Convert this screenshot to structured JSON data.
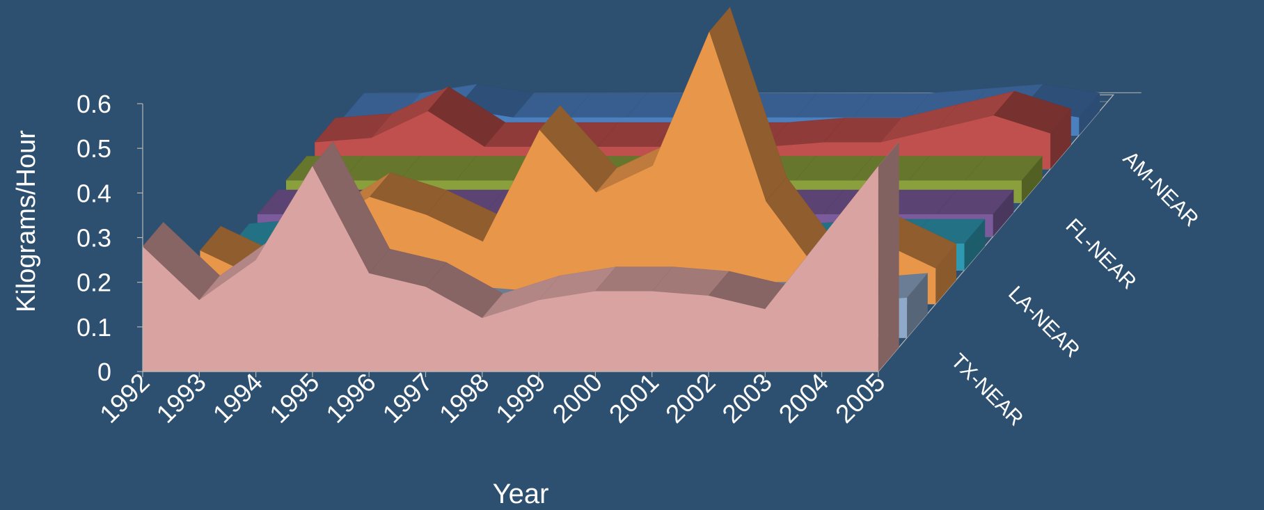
{
  "colors": {
    "background": "#2e5070",
    "axis": "#b8b8b8",
    "text": "#ffffff"
  },
  "chart_data": {
    "type": "area",
    "style": "3d-stacked-depth",
    "xlabel": "Year",
    "ylabel": "Kilograms/Hour",
    "ylim": [
      0,
      0.6
    ],
    "yticks": [
      "0",
      "0.1",
      "0.2",
      "0.3",
      "0.4",
      "0.5",
      "0.6"
    ],
    "categories": [
      "1992",
      "1993",
      "1994",
      "1995",
      "1996",
      "1997",
      "1998",
      "1999",
      "2000",
      "2001",
      "2002",
      "2003",
      "2004",
      "2005"
    ],
    "depth_labels": [
      "TX-NEAR",
      "LA-NEAR",
      "FL-NEAR",
      "AM-NEAR"
    ],
    "series": [
      {
        "name": "TX-NEAR",
        "color": "#d9a3a1",
        "values": [
          0.28,
          0.16,
          0.25,
          0.46,
          0.22,
          0.19,
          0.12,
          0.16,
          0.18,
          0.18,
          0.17,
          0.14,
          0.3,
          0.46
        ]
      },
      {
        "color": "#8fa9c8",
        "values": [
          0.05,
          0.06,
          0.07,
          0.08,
          0.07,
          0.06,
          0.05,
          0.06,
          0.07,
          0.08,
          0.07,
          0.07,
          0.08,
          0.09
        ]
      },
      {
        "name": "LA-NEAR",
        "color": "#e8964a",
        "values": [
          0.12,
          0.06,
          0.16,
          0.24,
          0.2,
          0.14,
          0.39,
          0.25,
          0.31,
          0.61,
          0.23,
          0.06,
          0.14,
          0.08
        ]
      },
      {
        "color": "#2f99b2",
        "values": [
          0.05,
          0.06,
          0.05,
          0.06,
          0.05,
          0.05,
          0.05,
          0.05,
          0.06,
          0.05,
          0.05,
          0.06,
          0.06,
          0.06
        ]
      },
      {
        "name": "FL-NEAR",
        "color": "#7b5b9c",
        "values": [
          0.05,
          0.05,
          0.05,
          0.05,
          0.05,
          0.05,
          0.05,
          0.05,
          0.05,
          0.05,
          0.05,
          0.05,
          0.05,
          0.05
        ]
      },
      {
        "color": "#8aa03c",
        "values": [
          0.05,
          0.05,
          0.05,
          0.05,
          0.05,
          0.05,
          0.05,
          0.05,
          0.05,
          0.05,
          0.05,
          0.05,
          0.05,
          0.05
        ]
      },
      {
        "name": "AM-NEAR",
        "color": "#c0504d",
        "values": [
          0.06,
          0.07,
          0.13,
          0.05,
          0.05,
          0.05,
          0.05,
          0.05,
          0.05,
          0.06,
          0.06,
          0.09,
          0.12,
          0.08
        ]
      },
      {
        "color": "#4a7fc0",
        "values": [
          0.04,
          0.04,
          0.06,
          0.04,
          0.04,
          0.04,
          0.04,
          0.04,
          0.04,
          0.04,
          0.04,
          0.05,
          0.06,
          0.04
        ]
      }
    ]
  }
}
